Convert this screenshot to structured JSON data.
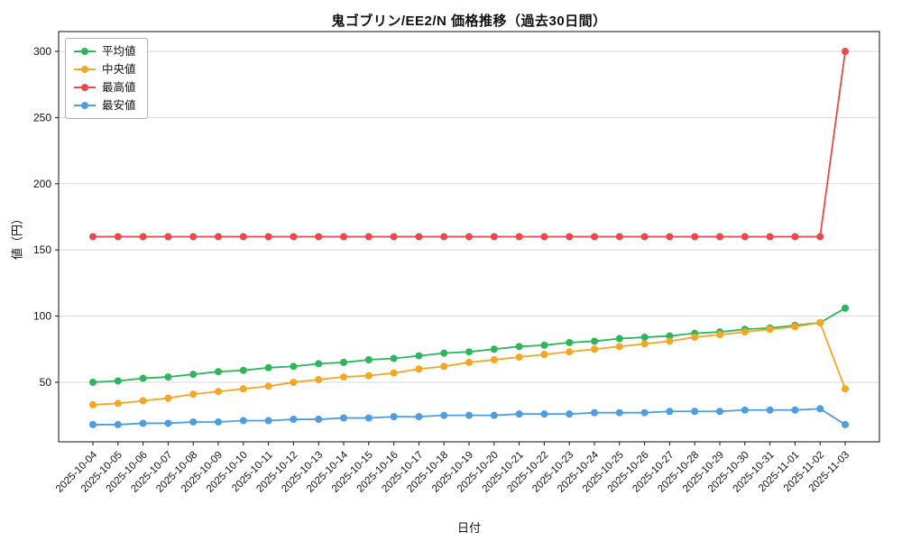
{
  "chart_data": {
    "type": "line",
    "title": "鬼ゴブリン/EE2/N 価格推移（過去30日間）",
    "xlabel": "日付",
    "ylabel": "値（円）",
    "categories": [
      "2025-10-04",
      "2025-10-05",
      "2025-10-06",
      "2025-10-07",
      "2025-10-08",
      "2025-10-09",
      "2025-10-10",
      "2025-10-11",
      "2025-10-12",
      "2025-10-13",
      "2025-10-14",
      "2025-10-15",
      "2025-10-16",
      "2025-10-17",
      "2025-10-18",
      "2025-10-19",
      "2025-10-20",
      "2025-10-21",
      "2025-10-22",
      "2025-10-23",
      "2025-10-24",
      "2025-10-25",
      "2025-10-26",
      "2025-10-27",
      "2025-10-28",
      "2025-10-29",
      "2025-10-30",
      "2025-10-31",
      "2025-11-01",
      "2025-11-02",
      "2025-11-03"
    ],
    "series": [
      {
        "name": "平均値",
        "color": "#2db55d",
        "values": [
          50,
          51,
          53,
          54,
          56,
          58,
          59,
          61,
          62,
          64,
          65,
          67,
          68,
          70,
          72,
          73,
          75,
          77,
          78,
          80,
          81,
          83,
          84,
          85,
          87,
          88,
          90,
          91,
          93,
          95,
          106
        ]
      },
      {
        "name": "中央値",
        "color": "#f5a623",
        "values": [
          33,
          34,
          36,
          38,
          41,
          43,
          45,
          47,
          50,
          52,
          54,
          55,
          57,
          60,
          62,
          65,
          67,
          69,
          71,
          73,
          75,
          77,
          79,
          81,
          84,
          86,
          88,
          90,
          92,
          95,
          45
        ]
      },
      {
        "name": "最高値",
        "color": "#e84a4a",
        "values": [
          160,
          160,
          160,
          160,
          160,
          160,
          160,
          160,
          160,
          160,
          160,
          160,
          160,
          160,
          160,
          160,
          160,
          160,
          160,
          160,
          160,
          160,
          160,
          160,
          160,
          160,
          160,
          160,
          160,
          160,
          300
        ]
      },
      {
        "name": "最安値",
        "color": "#4d9de0",
        "values": [
          18,
          18,
          19,
          19,
          20,
          20,
          21,
          21,
          22,
          22,
          23,
          23,
          24,
          24,
          25,
          25,
          25,
          26,
          26,
          26,
          27,
          27,
          27,
          28,
          28,
          28,
          29,
          29,
          29,
          30,
          18
        ]
      }
    ],
    "ylim": [
      5,
      315
    ],
    "yticks": [
      50,
      100,
      150,
      200,
      250,
      300
    ],
    "grid": "horizontal",
    "grid_color": "#d9d9d9",
    "legend_position": "upper-left"
  }
}
